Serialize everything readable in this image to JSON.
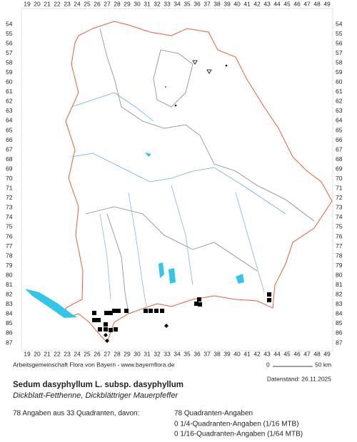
{
  "grid": {
    "x_labels": [
      19,
      20,
      21,
      22,
      23,
      24,
      25,
      26,
      27,
      28,
      29,
      30,
      31,
      32,
      33,
      34,
      35,
      36,
      37,
      38,
      39,
      40,
      41,
      42,
      43,
      44,
      45,
      46,
      47,
      48,
      49
    ],
    "y_labels": [
      54,
      55,
      56,
      57,
      58,
      59,
      60,
      61,
      62,
      63,
      64,
      65,
      66,
      67,
      68,
      69,
      70,
      71,
      72,
      73,
      74,
      75,
      76,
      77,
      78,
      79,
      80,
      81,
      82,
      83,
      84,
      85,
      86,
      87
    ]
  },
  "footer": {
    "credit": "Arbeitsgemeinschaft Flora von Bayern - www.bayernflora.de",
    "scale_start": "0",
    "scale_end": "50 km",
    "date": "Datenstand: 26.11.2025"
  },
  "species": {
    "name": "Sedum dasyphyllum L. subsp. dasyphyllum",
    "common_names": "Dickblatt-Fetthenne, Dickblättriger Mauerpfeffer"
  },
  "stats": {
    "summary": "78 Angaben aus 33 Quadranten, davon:",
    "lines": [
      "78 Quadranten-Angaben",
      "0 1/4-Quadranten-Angaben (1/16 MTB)",
      "0 1/16-Quadranten-Angaben (1/64 MTB)"
    ]
  }
}
